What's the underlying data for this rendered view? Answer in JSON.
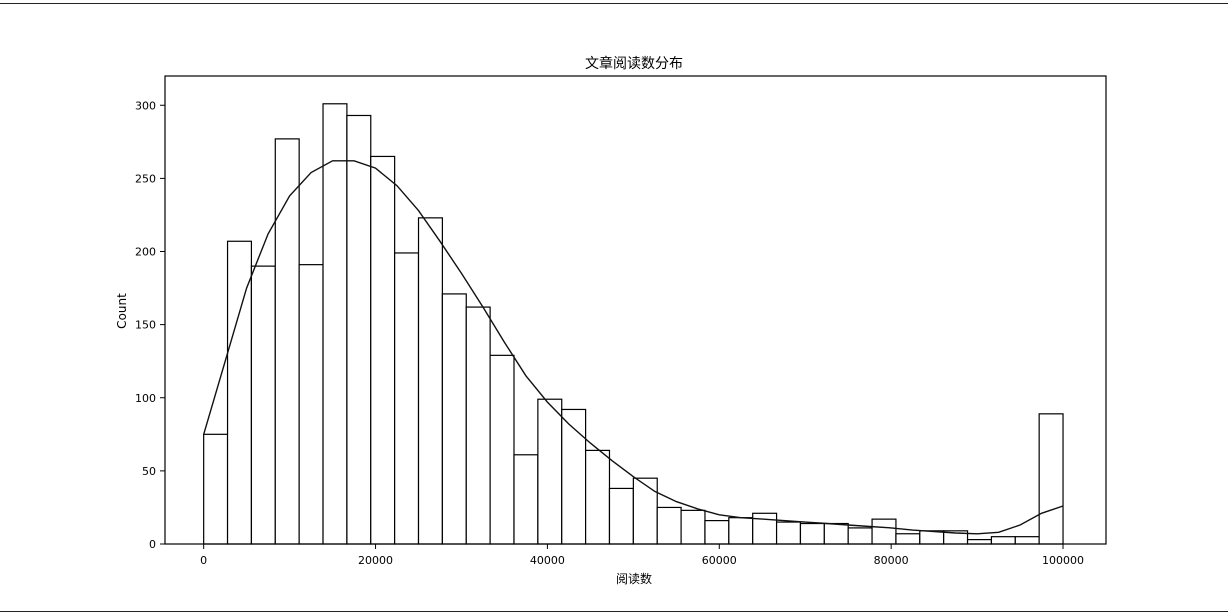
{
  "chart_data": {
    "type": "bar",
    "subtype": "histogram with kde line",
    "title": "文章阅读数分布",
    "xlabel": "阅读数",
    "ylabel": "Count",
    "xlim": [
      -4500,
      105000
    ],
    "ylim": [
      0,
      320
    ],
    "xticks": [
      0,
      20000,
      40000,
      60000,
      80000,
      100000
    ],
    "yticks": [
      0,
      50,
      100,
      150,
      200,
      250,
      300
    ],
    "grid": false,
    "bin_edges": [
      0,
      2778,
      5556,
      8333,
      11111,
      13889,
      16667,
      19444,
      22222,
      25000,
      27778,
      30556,
      33333,
      36111,
      38889,
      41667,
      44444,
      47222,
      50000,
      52778,
      55556,
      58333,
      61111,
      63889,
      66667,
      69444,
      72222,
      75000,
      77778,
      80556,
      83333,
      86111,
      88889,
      91667,
      94444,
      97222,
      100000
    ],
    "counts": [
      75,
      207,
      190,
      277,
      191,
      301,
      293,
      265,
      199,
      223,
      171,
      162,
      129,
      61,
      99,
      92,
      64,
      38,
      45,
      25,
      23,
      16,
      18,
      21,
      15,
      14,
      14,
      11,
      17,
      7,
      9,
      9,
      3,
      5,
      5,
      89
    ],
    "kde": {
      "x": [
        0,
        2500,
        5000,
        7500,
        10000,
        12500,
        15000,
        17500,
        20000,
        22500,
        25000,
        27500,
        30000,
        32500,
        35000,
        37500,
        40000,
        42500,
        45000,
        47500,
        50000,
        52500,
        55000,
        57500,
        60000,
        62500,
        65000,
        67500,
        70000,
        72500,
        75000,
        77500,
        80000,
        82500,
        85000,
        87500,
        90000,
        92500,
        95000,
        97500,
        100000
      ],
      "y": [
        75,
        125,
        175,
        212,
        238,
        254,
        262,
        262,
        257,
        245,
        228,
        207,
        185,
        162,
        138,
        115,
        97,
        82,
        69,
        57,
        46,
        36,
        29,
        24,
        20,
        18,
        17,
        16,
        15,
        14,
        13,
        12,
        11,
        9.5,
        8.5,
        7.5,
        7,
        8,
        13,
        21,
        26
      ]
    }
  }
}
